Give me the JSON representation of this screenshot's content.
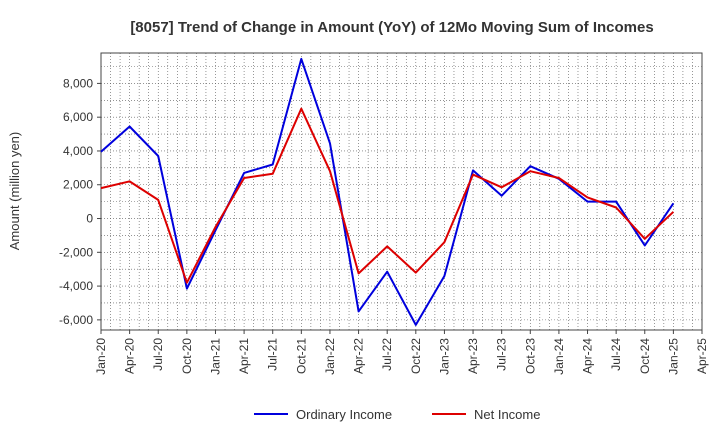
{
  "chart_data": {
    "type": "line",
    "title": "[8057]  Trend of Change in Amount (YoY) of 12Mo Moving Sum of Incomes",
    "xlabel": "",
    "ylabel": "Amount (million yen)",
    "ylim": [
      -6600,
      9800
    ],
    "y_ticks": [
      -6000,
      -4000,
      -2000,
      0,
      2000,
      4000,
      6000,
      8000
    ],
    "y_tick_labels": [
      "-6,000",
      "-4,000",
      "-2,000",
      "0",
      "2,000",
      "4,000",
      "6,000",
      "8,000"
    ],
    "x_tick_labels": [
      "Jan-20",
      "Apr-20",
      "Jul-20",
      "Oct-20",
      "Jan-21",
      "Apr-21",
      "Jul-21",
      "Oct-21",
      "Jan-22",
      "Apr-22",
      "Jul-22",
      "Oct-22",
      "Jan-23",
      "Apr-23",
      "Jul-23",
      "Oct-23",
      "Jan-24",
      "Apr-24",
      "Jul-24",
      "Oct-24",
      "Jan-25",
      "Apr-25"
    ],
    "x": [
      "Jan-20",
      "Apr-20",
      "Jul-20",
      "Oct-20",
      "Jan-21",
      "Apr-21",
      "Jul-21",
      "Oct-21",
      "Jan-22",
      "Apr-22",
      "Jul-22",
      "Oct-22",
      "Jan-23",
      "Apr-23",
      "Jul-23",
      "Oct-23",
      "Jan-24",
      "Apr-24",
      "Jul-24",
      "Oct-24",
      "Jan-25"
    ],
    "grid": true,
    "legend_position": "bottom",
    "series": [
      {
        "name": "Ordinary Income",
        "color": "#0000dd",
        "values": [
          3950,
          5450,
          3700,
          -4150,
          -700,
          2700,
          3200,
          9450,
          4450,
          -5500,
          -3150,
          -6300,
          -3400,
          2850,
          1350,
          3100,
          2350,
          1000,
          1000,
          -1600,
          900
        ]
      },
      {
        "name": "Net Income",
        "color": "#dd0000",
        "values": [
          1800,
          2200,
          1100,
          -3800,
          -500,
          2400,
          2650,
          6500,
          2800,
          -3250,
          -1650,
          -3200,
          -1400,
          2600,
          1850,
          2800,
          2400,
          1250,
          650,
          -1200,
          400
        ]
      }
    ]
  }
}
